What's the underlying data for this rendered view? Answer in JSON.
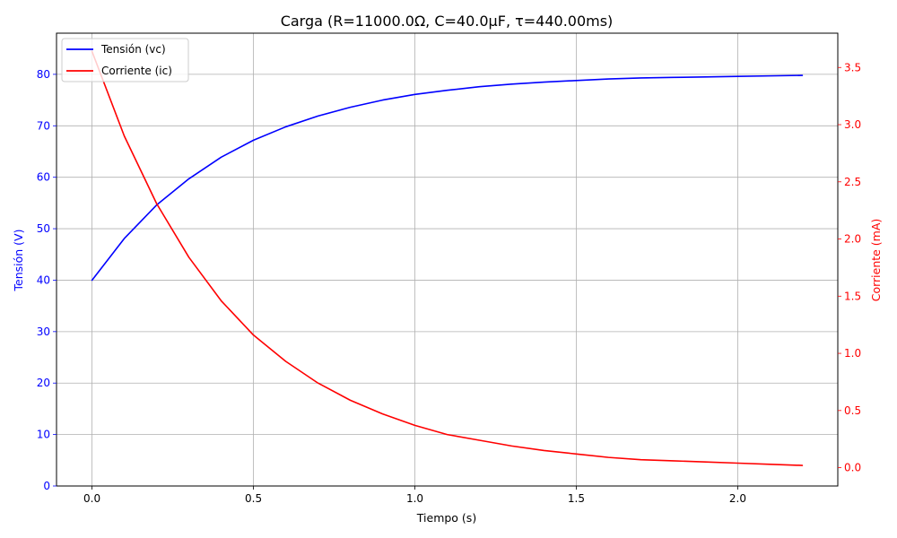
{
  "chart_data": {
    "type": "line",
    "title": "Carga (R=11000.0Ω, C=40.0µF, τ=440.00ms)",
    "xlabel": "Tiempo (s)",
    "ylabel_left": "Tensión (V)",
    "ylabel_right": "Corriente (mA)",
    "xlim": [
      -0.11,
      2.31
    ],
    "ylim_left": [
      0,
      88
    ],
    "ylim_right": [
      -0.16,
      3.8
    ],
    "grid": true,
    "legend_position": "top-left",
    "x_ticks": [
      {
        "value": 0.0,
        "label": "0.0"
      },
      {
        "value": 0.5,
        "label": "0.5"
      },
      {
        "value": 1.0,
        "label": "1.0"
      },
      {
        "value": 1.5,
        "label": "1.5"
      },
      {
        "value": 2.0,
        "label": "2.0"
      }
    ],
    "y_ticks_left": [
      {
        "value": 0,
        "label": "0"
      },
      {
        "value": 10,
        "label": "10"
      },
      {
        "value": 20,
        "label": "20"
      },
      {
        "value": 30,
        "label": "30"
      },
      {
        "value": 40,
        "label": "40"
      },
      {
        "value": 50,
        "label": "50"
      },
      {
        "value": 60,
        "label": "60"
      },
      {
        "value": 70,
        "label": "70"
      },
      {
        "value": 80,
        "label": "80"
      }
    ],
    "y_ticks_right": [
      {
        "value": 0.0,
        "label": "0.0"
      },
      {
        "value": 0.5,
        "label": "0.5"
      },
      {
        "value": 1.0,
        "label": "1.0"
      },
      {
        "value": 1.5,
        "label": "1.5"
      },
      {
        "value": 2.0,
        "label": "2.0"
      },
      {
        "value": 2.5,
        "label": "2.5"
      },
      {
        "value": 3.0,
        "label": "3.0"
      },
      {
        "value": 3.5,
        "label": "3.5"
      }
    ],
    "series": [
      {
        "name": "Tensión (vc)",
        "axis": "left",
        "color": "#0000ff",
        "x": [
          0.0,
          0.1,
          0.2,
          0.3,
          0.4,
          0.5,
          0.6,
          0.7,
          0.8,
          0.9,
          1.0,
          1.1,
          1.2,
          1.3,
          1.4,
          1.5,
          1.6,
          1.7,
          1.8,
          1.9,
          2.0,
          2.1,
          2.2
        ],
        "values": [
          40.0,
          48.1,
          54.6,
          59.7,
          63.9,
          67.2,
          69.8,
          71.9,
          73.6,
          75.0,
          76.1,
          76.9,
          77.6,
          78.1,
          78.5,
          78.8,
          79.1,
          79.3,
          79.4,
          79.5,
          79.6,
          79.7,
          79.8
        ]
      },
      {
        "name": "Corriente (ic)",
        "axis": "right",
        "color": "#ff0000",
        "x": [
          0.0,
          0.1,
          0.2,
          0.3,
          0.4,
          0.5,
          0.6,
          0.7,
          0.8,
          0.9,
          1.0,
          1.1,
          1.2,
          1.3,
          1.4,
          1.5,
          1.6,
          1.7,
          1.8,
          1.9,
          2.0,
          2.1,
          2.2
        ],
        "values": [
          3.64,
          2.9,
          2.31,
          1.84,
          1.46,
          1.16,
          0.93,
          0.74,
          0.59,
          0.47,
          0.37,
          0.29,
          0.24,
          0.19,
          0.15,
          0.12,
          0.09,
          0.07,
          0.06,
          0.05,
          0.04,
          0.03,
          0.02
        ]
      }
    ]
  }
}
